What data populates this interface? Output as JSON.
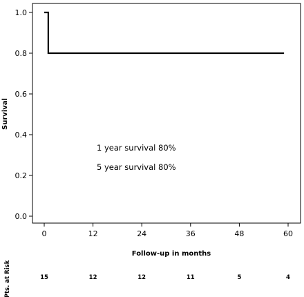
{
  "chart_data": {
    "type": "line",
    "title": "",
    "xlabel": "Follow-up in months",
    "ylabel": "Survival",
    "xlim": [
      0,
      60
    ],
    "ylim": [
      0.0,
      1.0
    ],
    "x_ticks": [
      0,
      12,
      24,
      36,
      48,
      60
    ],
    "y_ticks": [
      0.0,
      0.2,
      0.4,
      0.6,
      0.8,
      1.0
    ],
    "x_tick_labels": [
      "0",
      "12",
      "24",
      "36",
      "48",
      "60"
    ],
    "y_tick_labels": [
      "0.0",
      "0.2",
      "0.4",
      "0.6",
      "0.8",
      "1.0"
    ],
    "grid": false,
    "series": [
      {
        "step": true,
        "color": "#000000",
        "x": [
          0,
          1,
          1,
          59
        ],
        "y": [
          1.0,
          1.0,
          0.8,
          0.8
        ]
      }
    ],
    "annotations": [
      {
        "text": "1 year survival 80%"
      },
      {
        "text": "5 year survival 80%"
      }
    ],
    "at_risk": {
      "label": "Pts. at Risk",
      "values": [
        "15",
        "12",
        "12",
        "11",
        "5",
        "4"
      ]
    }
  }
}
